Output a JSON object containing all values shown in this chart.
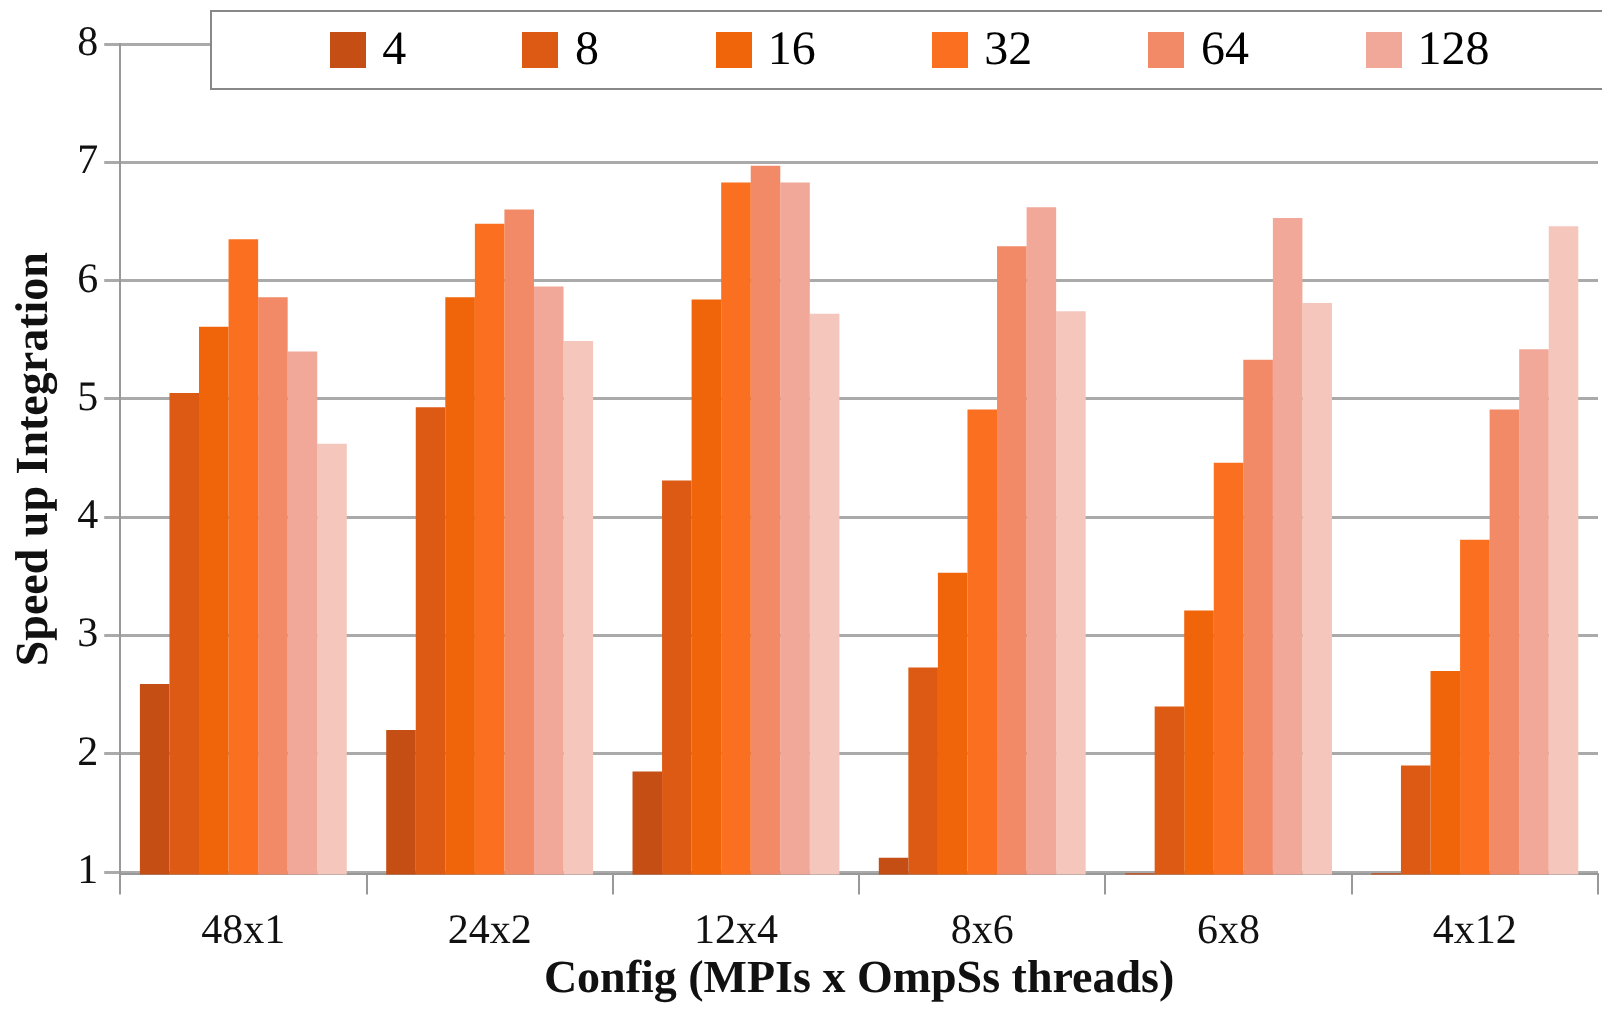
{
  "chart_data": {
    "type": "bar",
    "xlabel": "Config (MPIs x OmpSs threads)",
    "ylabel": "Speed up Integration",
    "categories": [
      "48x1",
      "24x2",
      "12x4",
      "8x6",
      "6x8",
      "4x12"
    ],
    "series": [
      {
        "name": "4",
        "color": "#c44e14",
        "values": [
          2.59,
          2.2,
          1.85,
          1.12,
          0.99,
          0.99
        ]
      },
      {
        "name": "8",
        "color": "#dc5a14",
        "values": [
          5.05,
          4.93,
          4.31,
          2.73,
          2.4,
          1.9
        ]
      },
      {
        "name": "16",
        "color": "#f0640a",
        "values": [
          5.61,
          5.86,
          5.84,
          3.53,
          3.21,
          2.7
        ]
      },
      {
        "name": "32",
        "color": "#fa7020",
        "values": [
          6.35,
          6.48,
          6.83,
          4.91,
          4.46,
          3.81
        ]
      },
      {
        "name": "64",
        "color": "#f28a68",
        "values": [
          5.86,
          6.6,
          6.97,
          6.29,
          5.33,
          4.91
        ]
      },
      {
        "name": "128",
        "color": "#f2a898",
        "values": [
          5.4,
          5.95,
          6.83,
          6.62,
          6.53,
          5.42
        ]
      },
      {
        "color": "#f4c6bc",
        "values": [
          4.62,
          5.49,
          5.72,
          5.74,
          5.81,
          6.46
        ]
      }
    ],
    "ylim": [
      0.98,
      8
    ],
    "yticks": [
      1,
      2,
      3,
      4,
      5,
      6,
      7,
      8
    ],
    "grid": "y",
    "legend": "top"
  }
}
